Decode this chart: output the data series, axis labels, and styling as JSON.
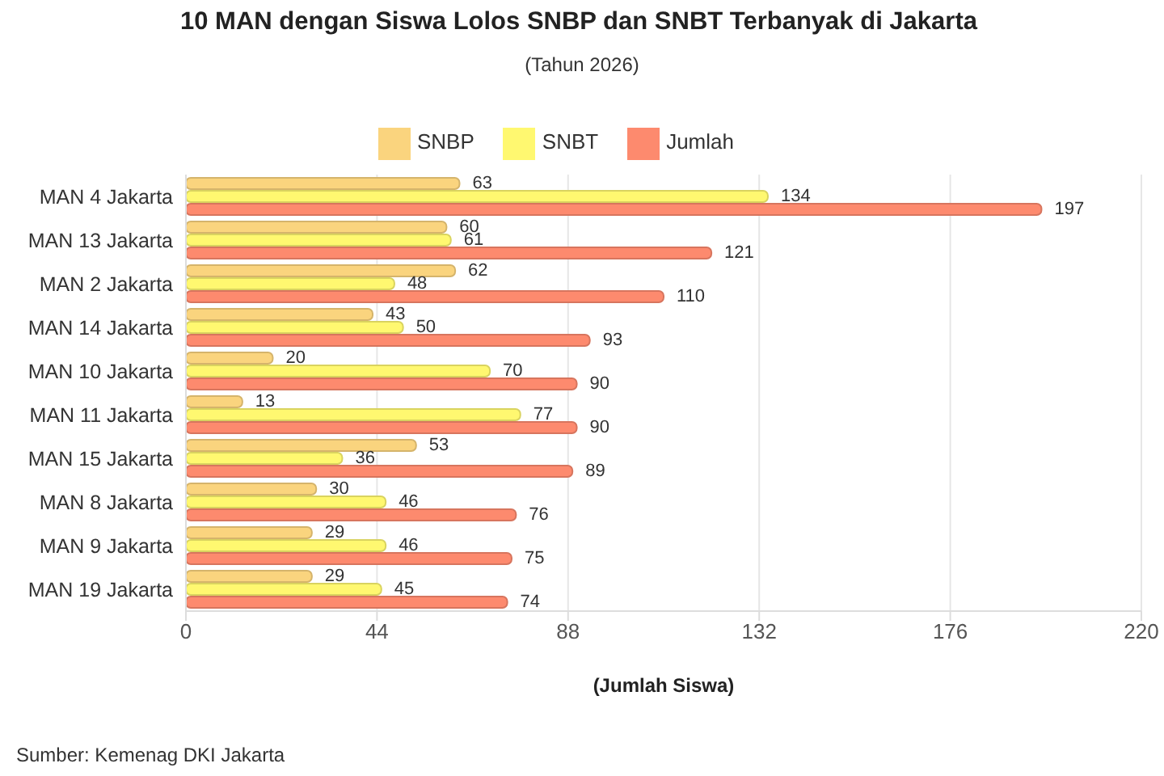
{
  "chart_data": {
    "type": "bar",
    "orientation": "horizontal",
    "title": "10 MAN dengan Siswa Lolos SNBP dan SNBT Terbanyak di Jakarta",
    "subtitle": "(Tahun 2026)",
    "xlabel": "(Jumlah Siswa)",
    "categories": [
      "MAN 4 Jakarta",
      "MAN 13 Jakarta",
      "MAN 2 Jakarta",
      "MAN 14 Jakarta",
      "MAN 10 Jakarta",
      "MAN 11 Jakarta",
      "MAN 15 Jakarta",
      "MAN 8 Jakarta",
      "MAN 9 Jakarta",
      "MAN 19 Jakarta"
    ],
    "series": [
      {
        "name": "SNBP",
        "color": "#fad47e",
        "values": [
          63,
          60,
          62,
          43,
          20,
          13,
          53,
          30,
          29,
          29
        ]
      },
      {
        "name": "SNBT",
        "color": "#fff870",
        "values": [
          134,
          61,
          48,
          50,
          70,
          77,
          36,
          46,
          46,
          45
        ]
      },
      {
        "name": "Jumlah",
        "color": "#fd8a6e",
        "values": [
          197,
          121,
          110,
          93,
          90,
          90,
          89,
          76,
          75,
          74
        ]
      }
    ],
    "xlim": [
      0,
      220
    ],
    "xticks": [
      0,
      44,
      88,
      132,
      176,
      220
    ],
    "grid": "x",
    "legend": "top",
    "data_labels": true,
    "annotations": [
      "Sumber: Kemenag DKI Jakarta"
    ]
  }
}
